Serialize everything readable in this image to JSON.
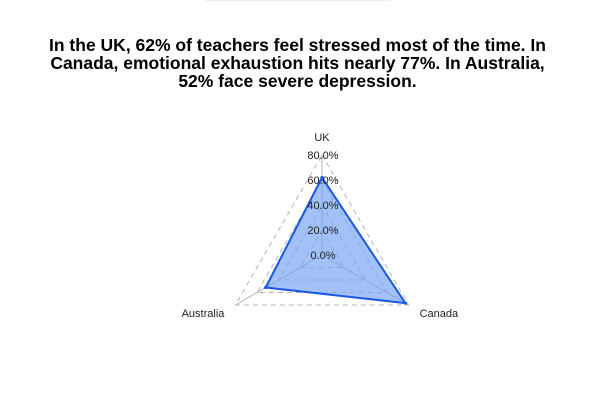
{
  "title": "In the UK, 62% of teachers feel stressed most of the time. In Canada, emotional exhaustion hits nearly 77%. In Australia, 52% face severe depression.",
  "chart_data": {
    "type": "radar",
    "title": "In the UK, 62% of teachers feel stressed most of the time. In Canada, emotional exhaustion hits nearly 77%. In Australia, 52% face severe depression.",
    "categories": [
      "UK",
      "Canada",
      "Australia"
    ],
    "series": [
      {
        "values": [
          62,
          77,
          52
        ]
      }
    ],
    "r_ticks": [
      0,
      20,
      40,
      60,
      80
    ],
    "r_tick_labels": [
      "0.0%",
      "20.0%",
      "40.0%",
      "60.0%",
      "80.0%"
    ],
    "rlim": [
      0,
      80
    ],
    "grid": true,
    "legend": "none",
    "colors": {
      "fill": "#6f9ff5",
      "stroke": "#1a56e0",
      "grid": "#b4b4b4"
    }
  }
}
